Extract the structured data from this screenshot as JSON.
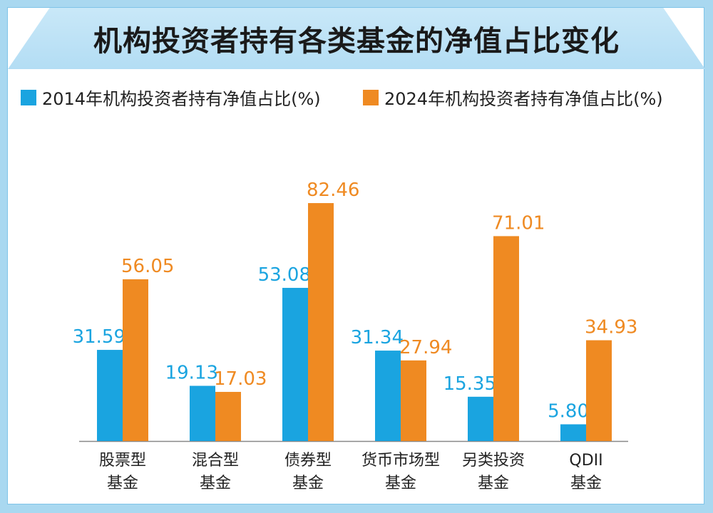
{
  "title": "机构投资者持有各类基金的净值占比变化",
  "colors": {
    "s2014": "#1aa4e0",
    "s2024": "#ef8a22",
    "axis": "#888888"
  },
  "chart_data": {
    "type": "bar",
    "categories": [
      [
        "股票型",
        "基金"
      ],
      [
        "混合型",
        "基金"
      ],
      [
        "债券型",
        "基金"
      ],
      [
        "货币市场型",
        "基金"
      ],
      [
        "另类投资",
        "基金"
      ],
      [
        "QDII",
        "基金"
      ]
    ],
    "series": [
      {
        "name": "2014年机构投资者持有净值占比(%)",
        "values": [
          31.59,
          19.13,
          53.08,
          31.34,
          15.35,
          5.8
        ],
        "labels": [
          "31.59",
          "19.13",
          "53.08",
          "31.34",
          "15.35",
          "5.80"
        ]
      },
      {
        "name": "2024年机构投资者持有净值占比(%)",
        "values": [
          56.05,
          17.03,
          82.46,
          27.94,
          71.01,
          34.93
        ],
        "labels": [
          "56.05",
          "17.03",
          "82.46",
          "27.94",
          "71.01",
          "34.93"
        ]
      }
    ],
    "ylim": [
      0,
      100
    ],
    "grid": false,
    "legend": "top"
  }
}
